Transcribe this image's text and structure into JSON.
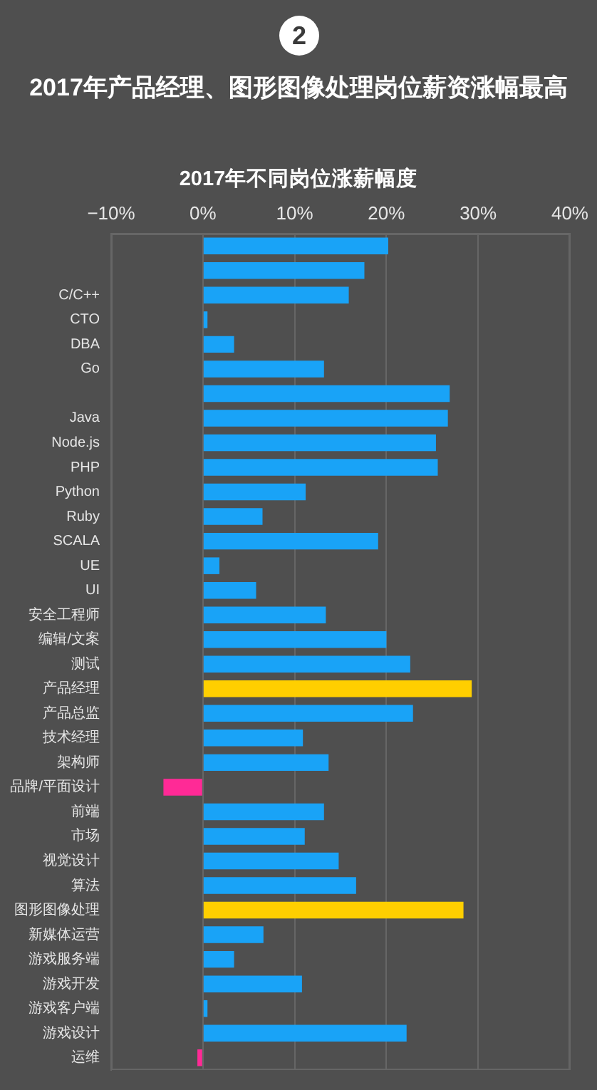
{
  "chart_data": {
    "type": "bar",
    "orientation": "horizontal",
    "title": "2017年产品经理、图形图像处理岗位薪资涨幅最高",
    "subtitle": "2017年不同岗位涨薪幅度",
    "annotations": [
      "2"
    ],
    "categories": [
      null,
      null,
      "C/C++",
      "CTO",
      "DBA",
      "Go",
      null,
      "Java",
      "Node.js",
      "PHP",
      "Python",
      "Ruby",
      "SCALA",
      "UE",
      "UI",
      "安全工程师",
      "编辑/文案",
      "测试",
      "产品经理",
      "产品总监",
      "技术经理",
      "架构师",
      "品牌/平面设计",
      "前端",
      "市场",
      "视觉设计",
      "算法",
      "图形图像处理",
      "新媒体运营",
      "游戏服务端",
      "游戏开发",
      "游戏客户端",
      "游戏设计",
      "运维"
    ],
    "values": [
      20.2,
      17.6,
      15.9,
      0.5,
      3.4,
      13.2,
      26.9,
      26.7,
      25.4,
      25.6,
      11.2,
      6.5,
      19.1,
      1.8,
      5.8,
      13.4,
      20.0,
      22.6,
      29.3,
      22.9,
      10.9,
      13.7,
      -4.3,
      13.2,
      11.1,
      14.8,
      16.7,
      28.4,
      6.6,
      3.4,
      10.8,
      0.5,
      22.2,
      -0.6
    ],
    "colors": [
      "#19a3f7",
      "#19a3f7",
      "#19a3f7",
      "#19a3f7",
      "#19a3f7",
      "#19a3f7",
      "#19a3f7",
      "#19a3f7",
      "#19a3f7",
      "#19a3f7",
      "#19a3f7",
      "#19a3f7",
      "#19a3f7",
      "#19a3f7",
      "#19a3f7",
      "#19a3f7",
      "#19a3f7",
      "#19a3f7",
      "#ffcf00",
      "#19a3f7",
      "#19a3f7",
      "#19a3f7",
      "#ff2a96",
      "#19a3f7",
      "#19a3f7",
      "#19a3f7",
      "#19a3f7",
      "#ffcf00",
      "#19a3f7",
      "#19a3f7",
      "#19a3f7",
      "#19a3f7",
      "#19a3f7",
      "#ff2a96"
    ],
    "xlim": [
      -10,
      40
    ],
    "xticks": [
      {
        "value": -10,
        "label": "−10%"
      },
      {
        "value": 0,
        "label": "0%"
      },
      {
        "value": 10,
        "label": "10%"
      },
      {
        "value": 20,
        "label": "20%"
      },
      {
        "value": 30,
        "label": "30%"
      },
      {
        "value": 40,
        "label": "40%"
      }
    ],
    "grid": "x"
  }
}
